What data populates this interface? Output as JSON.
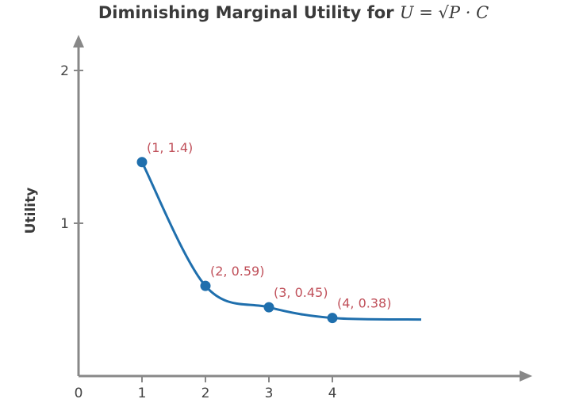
{
  "chart_data": {
    "type": "line",
    "title": "Diminishing Marginal Utility for",
    "title_formula": "U = √P · C",
    "xlabel": "",
    "ylabel": "Utility",
    "x_ticks": [
      "0",
      "1",
      "2",
      "3",
      "4"
    ],
    "y_ticks": [
      "1",
      "2"
    ],
    "xlim": [
      0,
      7
    ],
    "ylim": [
      0,
      2.2
    ],
    "grid": false,
    "colors": {
      "line": "#1f6fad",
      "point": "#1f6fad",
      "label": "#c0505a",
      "axis": "#888888"
    },
    "points": [
      {
        "x": 1,
        "y": 1.4,
        "label": "(1, 1.4)"
      },
      {
        "x": 2,
        "y": 0.59,
        "label": "(2, 0.59)"
      },
      {
        "x": 3,
        "y": 0.45,
        "label": "(3, 0.45)"
      },
      {
        "x": 4,
        "y": 0.38,
        "label": "(4, 0.38)"
      }
    ],
    "curve_end": {
      "x": 5.4,
      "y": 0.37
    }
  }
}
